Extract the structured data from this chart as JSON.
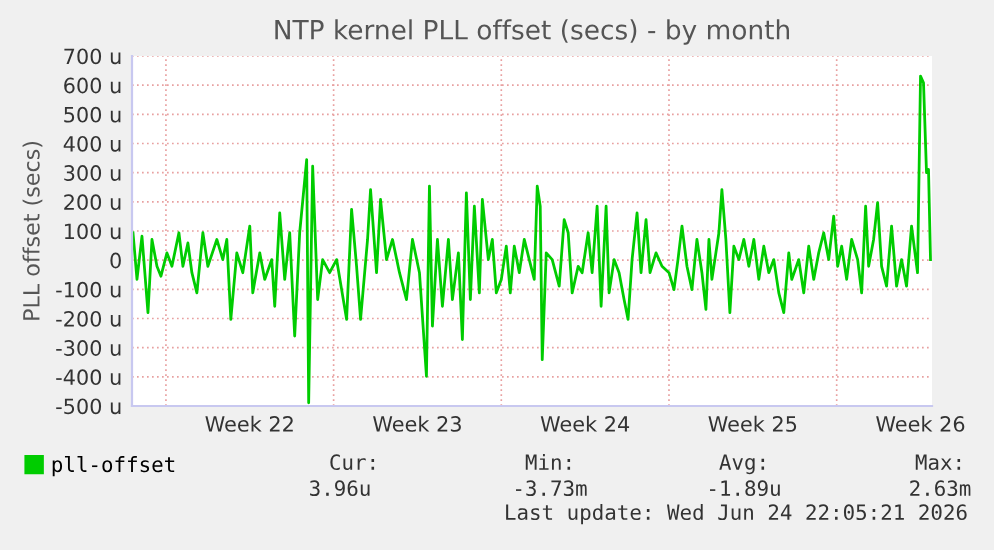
{
  "chart_data": {
    "type": "line",
    "title": "NTP kernel PLL offset (secs) - by month",
    "ylabel": "PLL offset (secs)",
    "xlim": [
      "2026-05-23T14:00",
      "2026-06-25T23:30"
    ],
    "ylim": [
      -500,
      700
    ],
    "xticks": [
      {
        "value": "2026-05-25T00:00",
        "label": null
      },
      {
        "value": "2026-05-28T12:00",
        "label": "Week 22"
      },
      {
        "value": "2026-06-01T00:00",
        "label": null
      },
      {
        "value": "2026-06-04T12:00",
        "label": "Week 23"
      },
      {
        "value": "2026-06-08T00:00",
        "label": null
      },
      {
        "value": "2026-06-11T12:00",
        "label": "Week 24"
      },
      {
        "value": "2026-06-15T00:00",
        "label": null
      },
      {
        "value": "2026-06-18T12:00",
        "label": "Week 25"
      },
      {
        "value": "2026-06-22T00:00",
        "label": null
      },
      {
        "value": "2026-06-25T12:00",
        "label": "Week 26"
      }
    ],
    "yticks": [
      {
        "value": -500,
        "label": "-500 u"
      },
      {
        "value": -400,
        "label": "-400 u"
      },
      {
        "value": -300,
        "label": "-300 u"
      },
      {
        "value": -200,
        "label": "-200 u"
      },
      {
        "value": -100,
        "label": "-100 u"
      },
      0,
      {
        "value": 100,
        "label": "100 u"
      },
      {
        "value": 200,
        "label": "200 u"
      },
      {
        "value": 300,
        "label": "300 u"
      },
      {
        "value": 400,
        "label": "400 u"
      },
      {
        "value": 500,
        "label": "500 u"
      },
      {
        "value": 600,
        "label": "600 u"
      },
      {
        "value": 700,
        "label": "700 u"
      }
    ],
    "grid": true,
    "legend": "bottom",
    "series": [
      {
        "name": "pll-offset",
        "color": "#00cc00",
        "x": [
          "2026-05-23T15:00",
          "2026-05-23T19:00",
          "2026-05-24T00:00",
          "2026-05-24T06:00",
          "2026-05-24T10:00",
          "2026-05-24T15:00",
          "2026-05-24T19:00",
          "2026-05-25T01:00",
          "2026-05-25T06:00",
          "2026-05-25T13:00",
          "2026-05-25T17:00",
          "2026-05-25T22:00",
          "2026-05-26T02:00",
          "2026-05-26T07:00",
          "2026-05-26T13:00",
          "2026-05-26T18:00",
          "2026-05-27T03:00",
          "2026-05-27T09:00",
          "2026-05-27T13:00",
          "2026-05-27T17:00",
          "2026-05-27T23:00",
          "2026-05-28T05:00",
          "2026-05-28T12:00",
          "2026-05-28T15:00",
          "2026-05-28T22:00",
          "2026-05-29T03:00",
          "2026-05-29T10:00",
          "2026-05-29T13:00",
          "2026-05-29T18:00",
          "2026-05-29T23:00",
          "2026-05-30T04:00",
          "2026-05-30T09:00",
          "2026-05-30T14:00",
          "2026-05-30T21:00",
          "2026-05-30T23:00",
          "2026-05-31T03:00",
          "2026-05-31T08:00",
          "2026-05-31T13:00",
          "2026-05-31T20:00",
          "2026-06-01T03:00",
          "2026-06-01T13:00",
          "2026-06-01T18:00",
          "2026-06-01T23:00",
          "2026-06-02T03:00",
          "2026-06-02T10:00",
          "2026-06-02T13:00",
          "2026-06-02T19:00",
          "2026-06-02T23:00",
          "2026-06-03T05:00",
          "2026-06-03T11:00",
          "2026-06-03T18:00",
          "2026-06-04T01:00",
          "2026-06-04T07:00",
          "2026-06-04T14:00",
          "2026-06-04T21:00",
          "2026-06-05T00:00",
          "2026-06-05T03:00",
          "2026-06-05T08:00",
          "2026-06-05T13:00",
          "2026-06-05T19:00",
          "2026-06-05T23:00",
          "2026-06-06T05:00",
          "2026-06-06T09:00",
          "2026-06-06T13:00",
          "2026-06-06T17:00",
          "2026-06-06T21:00",
          "2026-06-07T02:00",
          "2026-06-07T05:00",
          "2026-06-07T11:00",
          "2026-06-07T15:00",
          "2026-06-07T19:00",
          "2026-06-08T00:00",
          "2026-06-08T05:00",
          "2026-06-08T09:00",
          "2026-06-08T13:00",
          "2026-06-08T18:00",
          "2026-06-08T23:00",
          "2026-06-09T04:00",
          "2026-06-09T09:00",
          "2026-06-09T12:00",
          "2026-06-09T15:00",
          "2026-06-09T17:00",
          "2026-06-09T21:00",
          "2026-06-10T03:00",
          "2026-06-10T10:00",
          "2026-06-10T15:00",
          "2026-06-10T19:00",
          "2026-06-10T23:00",
          "2026-06-11T05:00",
          "2026-06-11T09:00",
          "2026-06-11T15:00",
          "2026-06-11T19:00",
          "2026-06-12T00:00",
          "2026-06-12T04:00",
          "2026-06-12T09:00",
          "2026-06-12T12:00",
          "2026-06-12T17:00",
          "2026-06-12T22:00",
          "2026-06-13T03:00",
          "2026-06-13T07:00",
          "2026-06-13T11:00",
          "2026-06-13T16:00",
          "2026-06-13T20:00",
          "2026-06-14T01:00",
          "2026-06-14T05:00",
          "2026-06-14T11:00",
          "2026-06-14T17:00",
          "2026-06-15T00:00",
          "2026-06-15T05:00",
          "2026-06-15T09:00",
          "2026-06-15T13:00",
          "2026-06-15T18:00",
          "2026-06-15T23:00",
          "2026-06-16T04:00",
          "2026-06-16T09:00",
          "2026-06-16T13:00",
          "2026-06-16T16:00",
          "2026-06-16T19:00",
          "2026-06-17T02:00",
          "2026-06-17T05:00",
          "2026-06-17T09:00",
          "2026-06-17T13:00",
          "2026-06-17T17:00",
          "2026-06-17T22:00",
          "2026-06-18T03:00",
          "2026-06-18T08:00",
          "2026-06-18T13:00",
          "2026-06-18T18:00",
          "2026-06-18T23:00",
          "2026-06-19T04:00",
          "2026-06-19T09:00",
          "2026-06-19T14:00",
          "2026-06-19T19:00",
          "2026-06-20T00:00",
          "2026-06-20T03:00",
          "2026-06-20T10:00",
          "2026-06-20T15:00",
          "2026-06-20T20:00",
          "2026-06-21T01:00",
          "2026-06-21T06:00",
          "2026-06-21T11:00",
          "2026-06-21T16:00",
          "2026-06-21T21:00",
          "2026-06-22T01:00",
          "2026-06-22T05:00",
          "2026-06-22T10:00",
          "2026-06-22T15:00",
          "2026-06-22T21:00",
          "2026-06-23T01:00",
          "2026-06-23T05:00",
          "2026-06-23T08:00",
          "2026-06-23T13:00",
          "2026-06-23T17:00",
          "2026-06-23T21:00",
          "2026-06-24T02:00",
          "2026-06-24T07:00",
          "2026-06-24T12:00",
          "2026-06-24T17:00",
          "2026-06-24T22:00",
          "2026-06-25T03:00",
          "2026-06-25T09:00",
          "2026-06-25T12:00",
          "2026-06-25T15:00",
          "2026-06-25T18:00",
          "2026-06-25T20:00",
          "2026-06-25T22:00"
        ],
        "values": [
          94,
          -66,
          82,
          -180,
          71,
          -21,
          -55,
          25,
          -21,
          94,
          -21,
          59,
          -43,
          -112,
          94,
          -21,
          71,
          2,
          71,
          -203,
          25,
          -43,
          117,
          -112,
          25,
          -66,
          2,
          -158,
          162,
          -66,
          94,
          -260,
          94,
          345,
          -489,
          322,
          -135,
          2,
          -43,
          2,
          -203,
          174,
          -21,
          -203,
          71,
          242,
          -43,
          208,
          2,
          71,
          -43,
          -135,
          71,
          -43,
          -398,
          254,
          -226,
          71,
          -158,
          71,
          -135,
          25,
          -272,
          231,
          -135,
          185,
          -112,
          208,
          2,
          71,
          -112,
          -66,
          48,
          -112,
          48,
          -43,
          71,
          2,
          -66,
          254,
          185,
          -341,
          25,
          2,
          -89,
          139,
          94,
          -112,
          -21,
          -43,
          94,
          -43,
          185,
          -158,
          185,
          -112,
          2,
          -43,
          -135,
          -203,
          2,
          162,
          -43,
          139,
          -43,
          25,
          -21,
          -43,
          -101,
          2,
          117,
          -21,
          -101,
          71,
          -43,
          -169,
          71,
          -66,
          94,
          242,
          71,
          -180,
          48,
          2,
          71,
          -21,
          71,
          -66,
          48,
          -43,
          2,
          -112,
          -180,
          25,
          -66,
          2,
          -112,
          48,
          -66,
          25,
          94,
          2,
          151,
          -21,
          48,
          -66,
          71,
          2,
          -112,
          185,
          -21,
          71,
          197,
          -21,
          -89,
          117,
          -89,
          2,
          -89,
          117,
          -43,
          631,
          608,
          300,
          311,
          2
        ]
      }
    ],
    "annotations": [
      "Cur:",
      "3.96u",
      "Min:",
      "-3.73m",
      "Avg:",
      "-1.89u",
      "Max:",
      "2.63m",
      "Last update: Wed Jun 24 22:05:21 2026"
    ]
  }
}
